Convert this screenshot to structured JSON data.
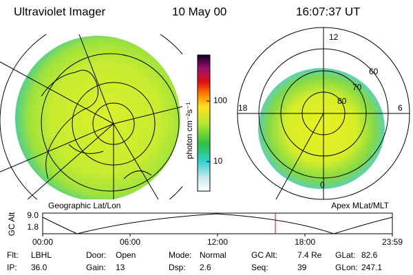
{
  "header": {
    "instrument": "Ultraviolet Imager",
    "date": "10 May 00",
    "time": "16:07:37 UT"
  },
  "colorbar": {
    "label": "photon cm⁻²s⁻¹",
    "ticks": [
      "100",
      "10"
    ]
  },
  "left_panel": {
    "label": "Geographic Lat/Lon"
  },
  "right_panel": {
    "label": "Apex MLat/MLT",
    "mlt_labels": [
      "12",
      "18",
      "6",
      "0"
    ],
    "mlat_labels": [
      "60",
      "70",
      "80"
    ]
  },
  "altitude_plot": {
    "axis_label": "GC Alt",
    "y_labels": [
      "9.0",
      "1.8"
    ],
    "time_labels": [
      "00:00",
      "06:00",
      "12:00",
      "18:00",
      "23:59"
    ]
  },
  "footer": {
    "rows": [
      [
        {
          "label": "Flt:",
          "value": "LBHL"
        },
        {
          "label": "Door:",
          "value": "Open"
        },
        {
          "label": "Mode:",
          "value": "Normal"
        },
        {
          "label": "GC Alt:",
          "value": "7.4 Re"
        },
        {
          "label": "GLat:",
          "value": "82.6"
        }
      ],
      [
        {
          "label": "IP:",
          "value": "36.0"
        },
        {
          "label": "Gain:",
          "value": "13"
        },
        {
          "label": "Dsp:",
          "value": "2.6"
        },
        {
          "label": "Seq:",
          "value": "39"
        },
        {
          "label": "GLon:",
          "value": "247.1"
        }
      ]
    ]
  }
}
